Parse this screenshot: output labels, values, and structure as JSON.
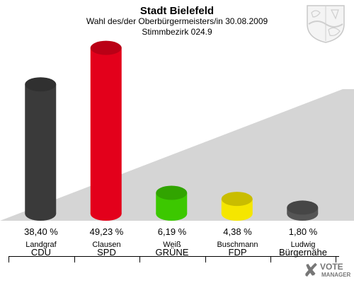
{
  "header": {
    "title": "Stadt Bielefeld",
    "subtitle": "Wahl des/der Oberbürgermeisters/in 30.08.2009",
    "district": "Stimmbezirk 024.9"
  },
  "logo": {
    "text_vote": "VOTE",
    "text_manager": "MANAGER",
    "icon": "vote-manager-check-icon"
  },
  "crest": {
    "icon": "nrw-coat-of-arms-icon"
  },
  "chart_data": {
    "type": "bar",
    "categories": [
      "Landgraf CDU",
      "Clausen SPD",
      "Weiß GRÜNE",
      "Buschmann FDP",
      "Ludwig Bürgernähe"
    ],
    "candidates": [
      "Landgraf",
      "Clausen",
      "Weiß",
      "Buschmann",
      "Ludwig"
    ],
    "parties": [
      "CDU",
      "SPD",
      "GRÜNE",
      "FDP",
      "Bürgernähe"
    ],
    "values": [
      38.4,
      49.23,
      6.19,
      4.38,
      1.8
    ],
    "value_labels": [
      "38,40 %",
      "49,23 %",
      "6,19 %",
      "4,38 %",
      "1,80 %"
    ],
    "colors": [
      "#3a3a3a",
      "#e3001b",
      "#3cc800",
      "#f5e600",
      "#555555"
    ],
    "ylim": [
      0,
      50
    ]
  }
}
